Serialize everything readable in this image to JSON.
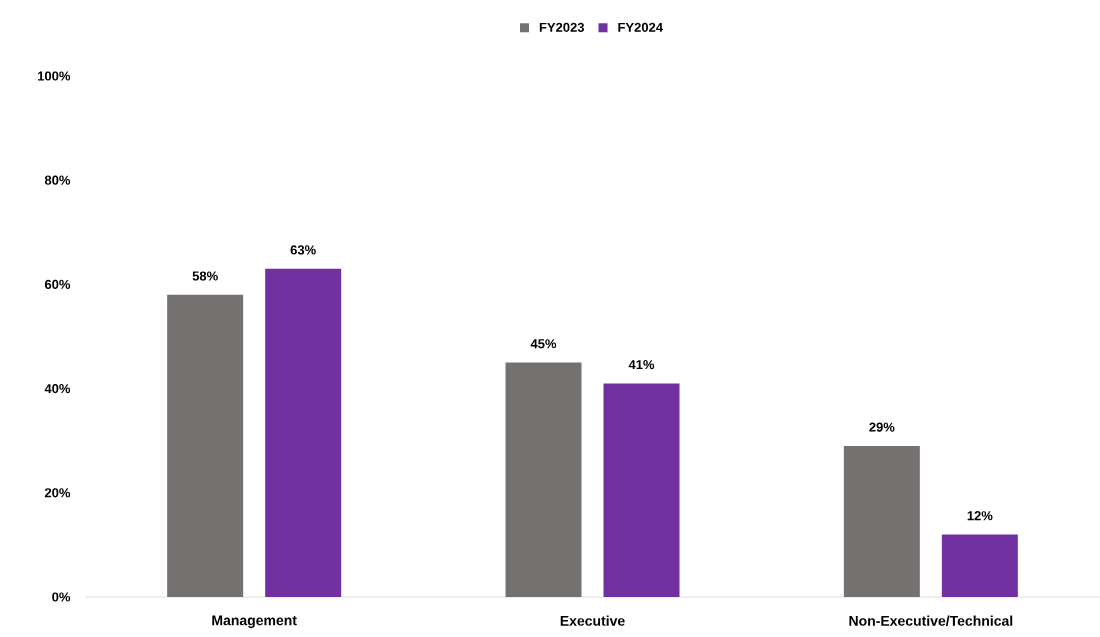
{
  "chart_data": {
    "type": "bar",
    "categories": [
      "Management",
      "Executive",
      "Non-Executive/Technical"
    ],
    "series": [
      {
        "name": "FY2023",
        "color": "#767171",
        "values": [
          58,
          45,
          29
        ],
        "value_labels": [
          "58%",
          "45%",
          "29%"
        ]
      },
      {
        "name": "FY2024",
        "color": "#7030a0",
        "values": [
          63,
          41,
          12
        ],
        "value_labels": [
          "63%",
          "41%",
          "12%"
        ]
      }
    ],
    "ylim": [
      0,
      100
    ],
    "yticks": [
      {
        "value": 0,
        "label": "0%"
      },
      {
        "value": 20,
        "label": "20%"
      },
      {
        "value": 40,
        "label": "40%"
      },
      {
        "value": 60,
        "label": "60%"
      },
      {
        "value": 80,
        "label": "80%"
      },
      {
        "value": 100,
        "label": "100%"
      }
    ],
    "legend": "top"
  }
}
